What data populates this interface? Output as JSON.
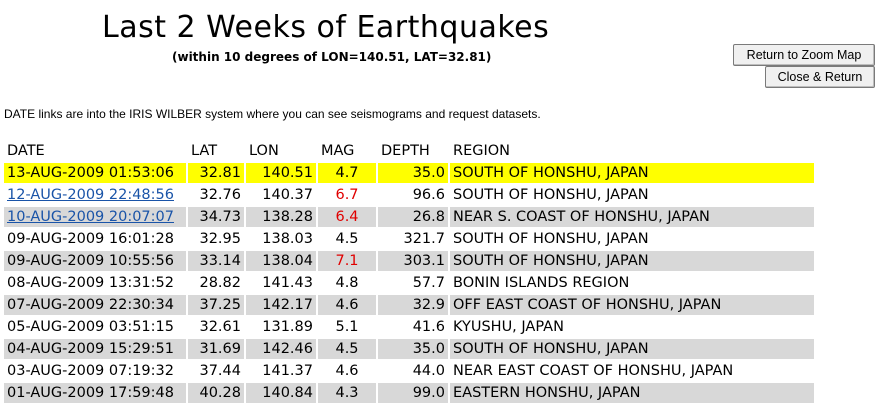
{
  "page": {
    "title": "Last 2 Weeks of Earthquakes",
    "subtitle": "(within 10 degrees of LON=140.51, LAT=32.81)",
    "note": "DATE links are into the IRIS WILBER system where you can see seismograms and request datasets."
  },
  "buttons": {
    "zoom": "Return to Zoom Map",
    "close": "Close & Return"
  },
  "table": {
    "headers": [
      "DATE",
      "LAT",
      "LON",
      "MAG",
      "DEPTH",
      "REGION"
    ],
    "rows": [
      {
        "date": "13-AUG-2009 01:53:06",
        "lat": "32.81",
        "lon": "140.51",
        "mag": "4.7",
        "depth": "35.0",
        "region": "SOUTH OF HONSHU, JAPAN",
        "highlight": true,
        "link": false,
        "big": false
      },
      {
        "date": "12-AUG-2009 22:48:56",
        "lat": "32.76",
        "lon": "140.37",
        "mag": "6.7",
        "depth": "96.6",
        "region": "SOUTH OF HONSHU, JAPAN",
        "highlight": false,
        "link": true,
        "big": true
      },
      {
        "date": "10-AUG-2009 20:07:07",
        "lat": "34.73",
        "lon": "138.28",
        "mag": "6.4",
        "depth": "26.8",
        "region": "NEAR S. COAST OF HONSHU, JAPAN",
        "highlight": false,
        "link": true,
        "big": true
      },
      {
        "date": "09-AUG-2009 16:01:28",
        "lat": "32.95",
        "lon": "138.03",
        "mag": "4.5",
        "depth": "321.7",
        "region": "SOUTH OF HONSHU, JAPAN",
        "highlight": false,
        "link": false,
        "big": false
      },
      {
        "date": "09-AUG-2009 10:55:56",
        "lat": "33.14",
        "lon": "138.04",
        "mag": "7.1",
        "depth": "303.1",
        "region": "SOUTH OF HONSHU, JAPAN",
        "highlight": false,
        "link": false,
        "big": true
      },
      {
        "date": "08-AUG-2009 13:31:52",
        "lat": "28.82",
        "lon": "141.43",
        "mag": "4.8",
        "depth": "57.7",
        "region": "BONIN ISLANDS REGION",
        "highlight": false,
        "link": false,
        "big": false
      },
      {
        "date": "07-AUG-2009 22:30:34",
        "lat": "37.25",
        "lon": "142.17",
        "mag": "4.6",
        "depth": "32.9",
        "region": "OFF EAST COAST OF HONSHU, JAPAN",
        "highlight": false,
        "link": false,
        "big": false
      },
      {
        "date": "05-AUG-2009 03:51:15",
        "lat": "32.61",
        "lon": "131.89",
        "mag": "5.1",
        "depth": "41.6",
        "region": "KYUSHU, JAPAN",
        "highlight": false,
        "link": false,
        "big": false
      },
      {
        "date": "04-AUG-2009 15:29:51",
        "lat": "31.69",
        "lon": "142.46",
        "mag": "4.5",
        "depth": "35.0",
        "region": "SOUTH OF HONSHU, JAPAN",
        "highlight": false,
        "link": false,
        "big": false
      },
      {
        "date": "03-AUG-2009 07:19:32",
        "lat": "37.44",
        "lon": "141.37",
        "mag": "4.6",
        "depth": "44.0",
        "region": "NEAR EAST COAST OF HONSHU, JAPAN",
        "highlight": false,
        "link": false,
        "big": false
      },
      {
        "date": "01-AUG-2009 17:59:48",
        "lat": "40.28",
        "lon": "140.84",
        "mag": "4.3",
        "depth": "99.0",
        "region": "EASTERN HONSHU, JAPAN",
        "highlight": false,
        "link": false,
        "big": false
      }
    ]
  },
  "colors": {
    "highlight": "#ffff00",
    "stripe": "#d8d8d8",
    "link": "#1a54a8",
    "bigMag": "#e00000"
  }
}
